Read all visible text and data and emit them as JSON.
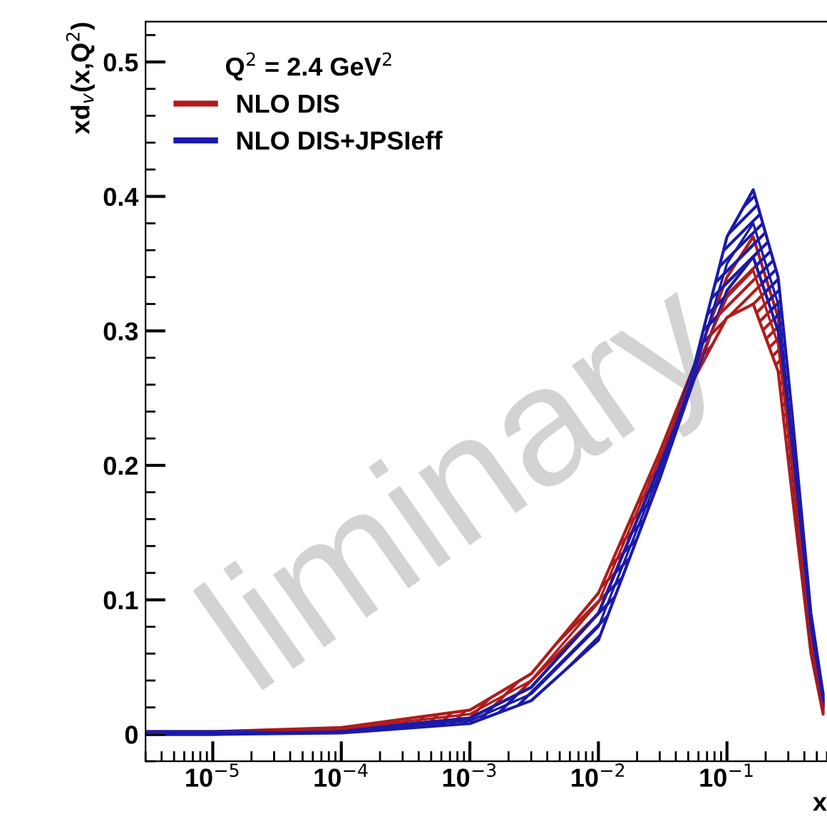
{
  "chart_data": {
    "type": "line",
    "ylabel": "xd$_{v}$(x,Q$^{2}$)",
    "xlabel": "x",
    "legend_title": "Q$^{2}$ = 2.4 GeV$^{2}$",
    "legend": "top left",
    "log": "x",
    "grid": false,
    "x": [
      3e-06,
      1e-05,
      0.0001,
      0.001,
      0.003,
      0.01,
      0.03,
      0.056,
      0.1,
      0.16,
      0.25,
      0.32,
      0.45,
      0.56
    ],
    "series": [
      {
        "name": "NLO DIS",
        "color": "#b01c1c",
        "values": [
          0.001,
          0.001,
          0.004,
          0.015,
          0.04,
          0.098,
          0.205,
          0.27,
          0.325,
          0.345,
          0.29,
          0.2,
          0.07,
          0.02
        ],
        "lower": [
          0,
          0,
          0.003,
          0.012,
          0.035,
          0.09,
          0.2,
          0.265,
          0.31,
          0.32,
          0.27,
          0.18,
          0.06,
          0.015
        ],
        "upper": [
          0.002,
          0.002,
          0.005,
          0.018,
          0.045,
          0.105,
          0.21,
          0.275,
          0.34,
          0.37,
          0.31,
          0.22,
          0.08,
          0.025
        ]
      },
      {
        "name": "NLO DIS+JPSIeff",
        "color": "#1a1aaa",
        "values": [
          0.001,
          0.001,
          0.002,
          0.01,
          0.03,
          0.08,
          0.195,
          0.27,
          0.35,
          0.38,
          0.32,
          0.22,
          0.08,
          0.025
        ],
        "lower": [
          0,
          0,
          0.001,
          0.008,
          0.025,
          0.07,
          0.19,
          0.265,
          0.33,
          0.355,
          0.3,
          0.2,
          0.07,
          0.02
        ],
        "upper": [
          0.002,
          0.002,
          0.003,
          0.012,
          0.035,
          0.09,
          0.2,
          0.275,
          0.37,
          0.405,
          0.34,
          0.24,
          0.09,
          0.03
        ]
      }
    ],
    "xlim": [
      3e-06,
      0.6
    ],
    "ylim": [
      -0.02,
      0.53
    ],
    "xticks": [
      {
        "value": 1e-05,
        "label": "10$^{−5}$"
      },
      {
        "value": 0.0001,
        "label": "10$^{−4}$"
      },
      {
        "value": 0.001,
        "label": "10$^{−3}$"
      },
      {
        "value": 0.01,
        "label": "10$^{−2}$"
      },
      {
        "value": 0.1,
        "label": "10$^{−1}$"
      }
    ],
    "yticks": [
      0,
      0.1,
      0.2,
      0.3,
      0.4,
      0.5
    ],
    "annotations": [
      "liminary"
    ]
  }
}
